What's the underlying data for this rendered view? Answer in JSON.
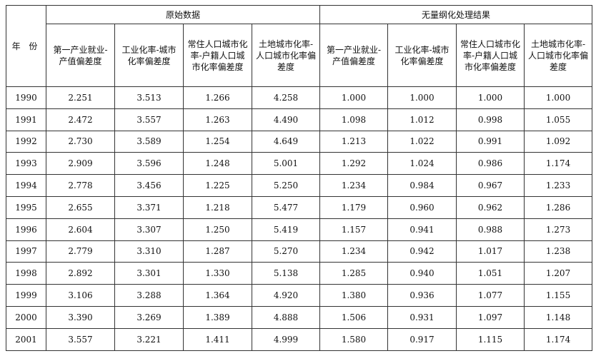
{
  "table": {
    "year_header": "年 份",
    "groups": [
      "原始数据",
      "无量纲化处理结果"
    ],
    "columns": [
      "第一产业就业-产值偏差度",
      "工业化率-城市化率偏差度",
      "常住人口城市化率-户籍人口城市化率偏差度",
      "土地城市化率-人口城市化率偏差度"
    ],
    "rows": [
      {
        "year": "1990",
        "values": [
          "2.251",
          "3.513",
          "1.266",
          "4.258",
          "1.000",
          "1.000",
          "1.000",
          "1.000"
        ]
      },
      {
        "year": "1991",
        "values": [
          "2.472",
          "3.557",
          "1.263",
          "4.490",
          "1.098",
          "1.012",
          "0.998",
          "1.055"
        ]
      },
      {
        "year": "1992",
        "values": [
          "2.730",
          "3.589",
          "1.254",
          "4.649",
          "1.213",
          "1.022",
          "0.991",
          "1.092"
        ]
      },
      {
        "year": "1993",
        "values": [
          "2.909",
          "3.596",
          "1.248",
          "5.001",
          "1.292",
          "1.024",
          "0.986",
          "1.174"
        ]
      },
      {
        "year": "1994",
        "values": [
          "2.778",
          "3.456",
          "1.225",
          "5.250",
          "1.234",
          "0.984",
          "0.967",
          "1.233"
        ]
      },
      {
        "year": "1995",
        "values": [
          "2.655",
          "3.371",
          "1.218",
          "5.477",
          "1.179",
          "0.960",
          "0.962",
          "1.286"
        ]
      },
      {
        "year": "1996",
        "values": [
          "2.604",
          "3.307",
          "1.250",
          "5.419",
          "1.157",
          "0.941",
          "0.988",
          "1.273"
        ]
      },
      {
        "year": "1997",
        "values": [
          "2.779",
          "3.310",
          "1.287",
          "5.270",
          "1.234",
          "0.942",
          "1.017",
          "1.238"
        ]
      },
      {
        "year": "1998",
        "values": [
          "2.892",
          "3.301",
          "1.330",
          "5.138",
          "1.285",
          "0.940",
          "1.051",
          "1.207"
        ]
      },
      {
        "year": "1999",
        "values": [
          "3.106",
          "3.288",
          "1.364",
          "4.920",
          "1.380",
          "0.936",
          "1.077",
          "1.155"
        ]
      },
      {
        "year": "2000",
        "values": [
          "3.390",
          "3.269",
          "1.389",
          "4.888",
          "1.506",
          "0.931",
          "1.097",
          "1.148"
        ]
      },
      {
        "year": "2001",
        "values": [
          "3.557",
          "3.221",
          "1.411",
          "4.999",
          "1.580",
          "0.917",
          "1.115",
          "1.174"
        ]
      }
    ]
  }
}
